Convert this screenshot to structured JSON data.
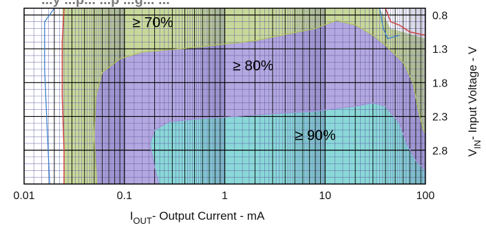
{
  "chart_data": {
    "type": "heatmap",
    "title_fragment": "...y ...p... ...p ...g... ...",
    "xlabel": {
      "prefix": "I",
      "sub": "OUT",
      "suffix": "- Output Current - mA"
    },
    "ylabel": {
      "prefix": "V",
      "sub": "IN",
      "suffix": "- Input Voltage - V"
    },
    "x_scale": "log",
    "xlim": [
      0.01,
      100
    ],
    "ylim": [
      0.7,
      3.3
    ],
    "y_inverted": true,
    "x_ticks": [
      "0.01",
      "0.1",
      "1",
      "10",
      "100"
    ],
    "y_ticks": [
      "0.8",
      "1.3",
      "1.8",
      "2.3",
      "2.8"
    ],
    "grid": true,
    "regions": [
      {
        "name": "≥ 70%",
        "color": "#c8d89a"
      },
      {
        "name": "≥ 80%",
        "color": "#b4a8e0"
      },
      {
        "name": "≥ 90%",
        "color": "#8ad8d8"
      }
    ],
    "annotations": [
      {
        "text": "≥ 70%",
        "x": 0.12,
        "y": 0.98
      },
      {
        "text": "≥ 80%",
        "x": 1.2,
        "y": 1.62
      },
      {
        "text": "≥ 90%",
        "x": 5.0,
        "y": 2.65
      }
    ],
    "contours": {
      "outer_red": [
        [
          0.018,
          3.3
        ],
        [
          0.017,
          2.5
        ],
        [
          0.016,
          1.6
        ],
        [
          0.016,
          0.9
        ],
        [
          0.02,
          0.7
        ]
      ],
      "outer_red_right": [
        [
          40,
          0.7
        ],
        [
          45,
          0.9
        ],
        [
          55,
          0.95
        ],
        [
          70,
          1.05
        ],
        [
          100,
          1.1
        ]
      ],
      "eff_70": [
        [
          0.053,
          3.3
        ],
        [
          0.05,
          2.6
        ],
        [
          0.052,
          2.0
        ],
        [
          0.06,
          1.65
        ],
        [
          0.09,
          1.45
        ],
        [
          0.15,
          1.35
        ],
        [
          0.5,
          1.28
        ],
        [
          2,
          1.18
        ],
        [
          8,
          1.0
        ],
        [
          13,
          0.88
        ],
        [
          20,
          0.95
        ],
        [
          30,
          1.1
        ],
        [
          40,
          1.25
        ],
        [
          60,
          1.5
        ],
        [
          75,
          1.8
        ],
        [
          85,
          2.2
        ],
        [
          95,
          2.5
        ],
        [
          100,
          2.55
        ]
      ],
      "eff_80": [
        [
          0.22,
          3.3
        ],
        [
          0.2,
          3.05
        ],
        [
          0.18,
          2.7
        ],
        [
          0.2,
          2.5
        ],
        [
          0.28,
          2.38
        ],
        [
          0.6,
          2.33
        ],
        [
          2,
          2.28
        ],
        [
          8,
          2.22
        ],
        [
          20,
          2.15
        ],
        [
          30,
          2.1
        ],
        [
          40,
          2.15
        ],
        [
          55,
          2.4
        ],
        [
          65,
          2.7
        ],
        [
          80,
          2.95
        ],
        [
          100,
          3.1
        ]
      ]
    }
  }
}
